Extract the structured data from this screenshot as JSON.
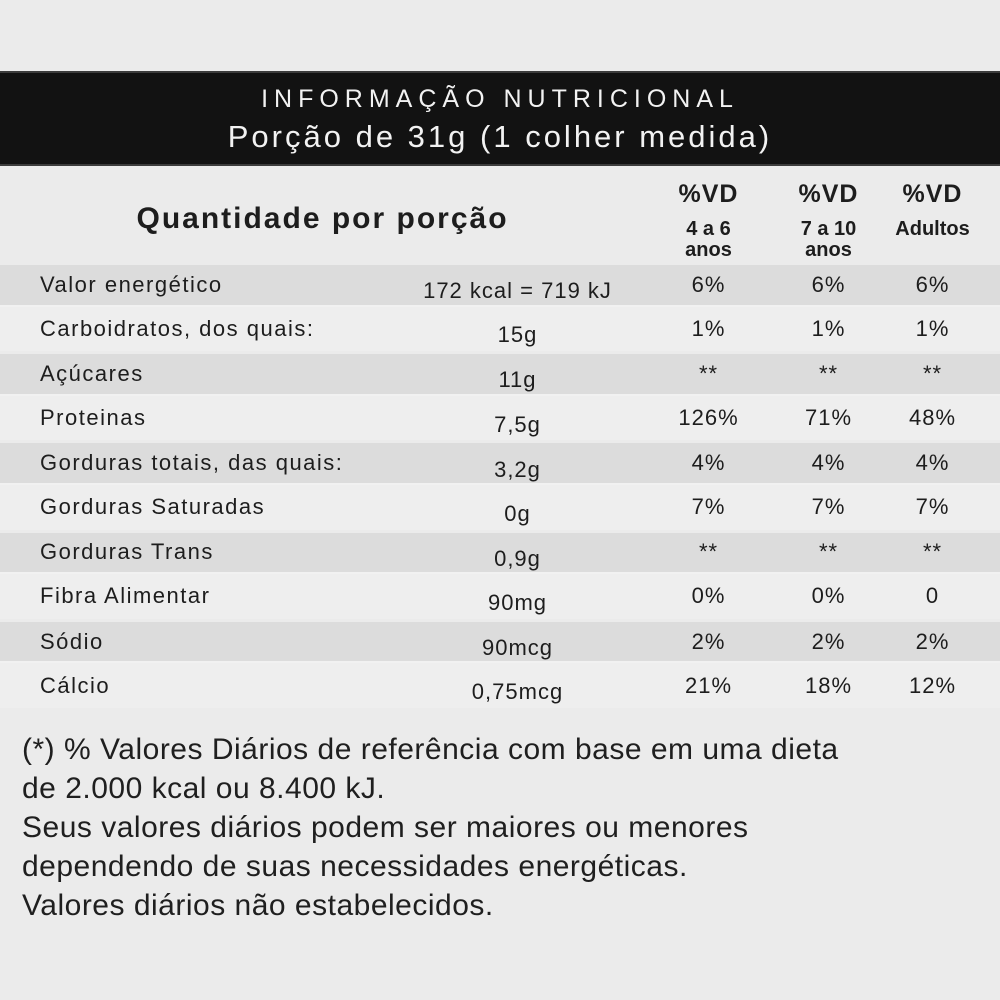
{
  "header": {
    "title": "INFORMAÇÃO NUTRICIONAL",
    "subtitle": "Porção de 31g (1 colher medida)"
  },
  "columns": {
    "quantity_title": "Quantidade por porção",
    "vd": [
      {
        "label": "%VD",
        "sub1": "4 a 6",
        "sub2": "anos"
      },
      {
        "label": "%VD",
        "sub1": "7 a 10",
        "sub2": "anos"
      },
      {
        "label": "%VD",
        "sub1": "Adultos",
        "sub2": ""
      }
    ]
  },
  "rows": [
    {
      "nutrient": "Valor energético",
      "quantity": "172 kcal = 719 kJ",
      "vd_4_6": "6%",
      "vd_7_10": "6%",
      "vd_adults": "6%"
    },
    {
      "nutrient": "Carboidratos, dos quais:",
      "quantity": "15g",
      "vd_4_6": "1%",
      "vd_7_10": "1%",
      "vd_adults": "1%"
    },
    {
      "nutrient": "Açúcares",
      "quantity": "11g",
      "vd_4_6": "**",
      "vd_7_10": "**",
      "vd_adults": "**"
    },
    {
      "nutrient": "Proteinas",
      "quantity": "7,5g",
      "vd_4_6": "126%",
      "vd_7_10": "71%",
      "vd_adults": "48%"
    },
    {
      "nutrient": "Gorduras totais, das quais:",
      "quantity": "3,2g",
      "vd_4_6": "4%",
      "vd_7_10": "4%",
      "vd_adults": "4%"
    },
    {
      "nutrient": "Gorduras Saturadas",
      "quantity": "0g",
      "vd_4_6": "7%",
      "vd_7_10": "7%",
      "vd_adults": "7%"
    },
    {
      "nutrient": "Gorduras Trans",
      "quantity": "0,9g",
      "vd_4_6": "**",
      "vd_7_10": "**",
      "vd_adults": "**"
    },
    {
      "nutrient": "Fibra Alimentar",
      "quantity": "90mg",
      "vd_4_6": "0%",
      "vd_7_10": "0%",
      "vd_adults": "0"
    },
    {
      "nutrient": "Sódio",
      "quantity": "90mcg",
      "vd_4_6": "2%",
      "vd_7_10": "2%",
      "vd_adults": "2%"
    },
    {
      "nutrient": "Cálcio",
      "quantity": "0,75mcg",
      "vd_4_6": "21%",
      "vd_7_10": "18%",
      "vd_adults": "12%"
    }
  ],
  "footer": {
    "lines": [
      "(*) % Valores Diários de referência com base em uma dieta",
      "de 2.000 kcal ou 8.400 kJ.",
      "Seus valores diários podem ser maiores ou menores",
      "dependendo de suas necessidades energéticas.",
      "Valores diários não estabelecidos."
    ]
  },
  "colors": {
    "page_bg": "#ebebeb",
    "bar_bg": "#121212",
    "bar_text": "#f2f2f2",
    "stripe_dark": "#dcdcdc",
    "stripe_light": "#eeeeee",
    "text": "#1d1d1d"
  }
}
